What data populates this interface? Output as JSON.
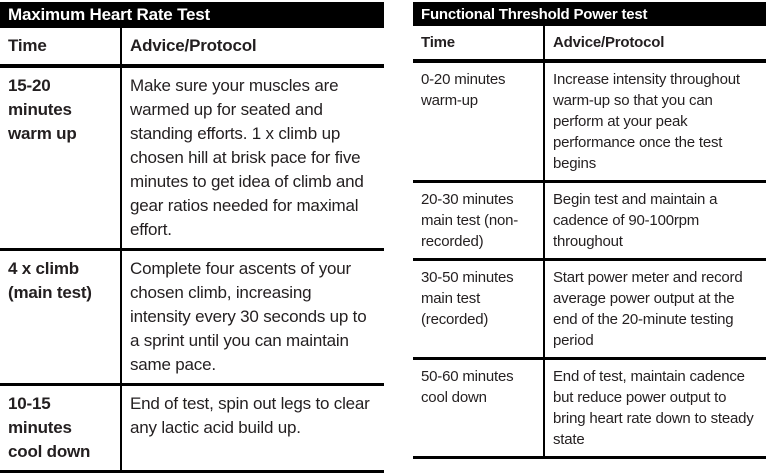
{
  "colors": {
    "header_bg": "#000000",
    "header_text": "#ffffff",
    "border": "#000000",
    "text": "#231f20",
    "background": "#ffffff"
  },
  "tables": [
    {
      "title": "Maximum Heart Rate Test",
      "columns": [
        "Time",
        "Advice/Protocol"
      ],
      "rows": [
        {
          "time": "15-20 minutes warm up",
          "advice": "Make sure your muscles are warmed up for seated and standing efforts. 1 x climb up chosen hill at brisk pace for five minutes to get idea of climb and gear ratios needed for maximal effort."
        },
        {
          "time": "4 x climb (main test)",
          "advice": "Complete four ascents of your chosen climb, increasing intensity every 30 seconds up to a sprint until you can maintain same pace."
        },
        {
          "time": "10-15 minutes cool down",
          "advice": "End of test, spin out legs to clear any lactic acid build up."
        }
      ]
    },
    {
      "title": "Functional Threshold Power test",
      "columns": [
        "Time",
        "Advice/Protocol"
      ],
      "rows": [
        {
          "time": "0-20 minutes warm-up",
          "advice": "Increase intensity throughout warm-up so that you can perform at your peak performance once the test begins"
        },
        {
          "time": "20-30 minutes main test (non-recorded)",
          "advice": "Begin test and maintain a cadence of 90-100rpm throughout"
        },
        {
          "time": "30-50 minutes main test (recorded)",
          "advice": "Start power meter and record average power output at the end of the 20-minute testing period"
        },
        {
          "time": "50-60 minutes cool down",
          "advice": "End of test, maintain cadence but reduce power output to bring heart rate down to steady state"
        }
      ]
    }
  ]
}
